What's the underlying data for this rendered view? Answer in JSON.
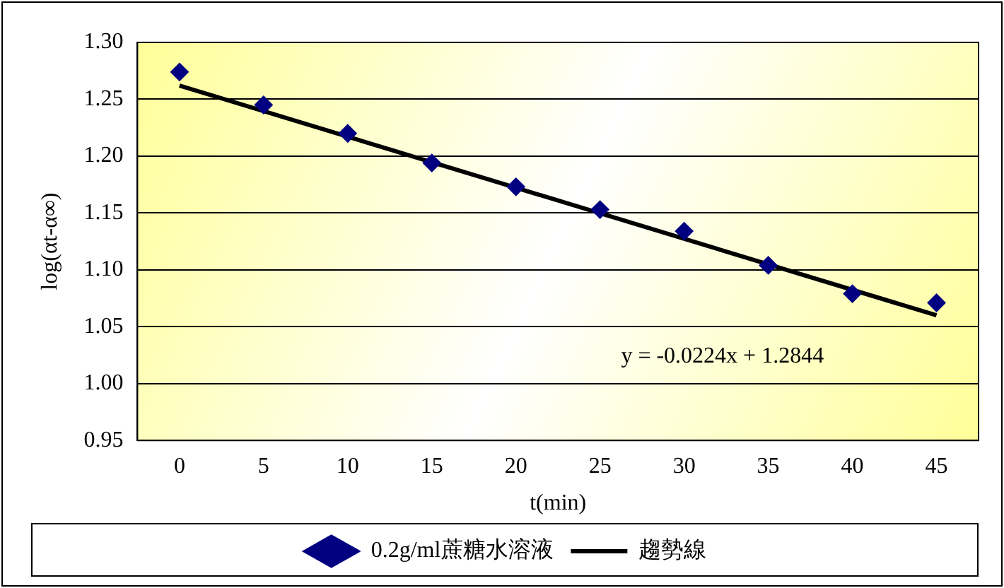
{
  "chart_data": {
    "type": "scatter",
    "xlabel": "t(min)",
    "ylabel": "log(αt-α∞)",
    "x": [
      0,
      5,
      10,
      15,
      20,
      25,
      30,
      35,
      40,
      45
    ],
    "series": [
      {
        "name": "0.2g/ml蔗糖水溶液",
        "color": "#000080",
        "marker": "diamond",
        "values": [
          1.274,
          1.245,
          1.22,
          1.194,
          1.173,
          1.153,
          1.134,
          1.104,
          1.079,
          1.071
        ]
      },
      {
        "name": "趨勢線",
        "type": "line",
        "color": "#000000",
        "marker": "none",
        "x": [
          0,
          45
        ],
        "values": [
          1.262,
          1.06
        ]
      }
    ],
    "xlim": [
      -2.5,
      47.5
    ],
    "xticks": [
      0,
      5,
      10,
      15,
      20,
      25,
      30,
      35,
      40,
      45
    ],
    "ylim": [
      0.95,
      1.3
    ],
    "yticks": [
      {
        "value": 0.95,
        "label": "0.95"
      },
      {
        "value": 1.0,
        "label": "1.00"
      },
      {
        "value": 1.05,
        "label": "1.05"
      },
      {
        "value": 1.1,
        "label": "1.10"
      },
      {
        "value": 1.15,
        "label": "1.15"
      },
      {
        "value": 1.2,
        "label": "1.20"
      },
      {
        "value": 1.25,
        "label": "1.25"
      },
      {
        "value": 1.3,
        "label": "1.30"
      }
    ],
    "grid": "y",
    "legend": "bottom",
    "annotations": [
      "y = -0.0224x + 1.2844"
    ]
  }
}
